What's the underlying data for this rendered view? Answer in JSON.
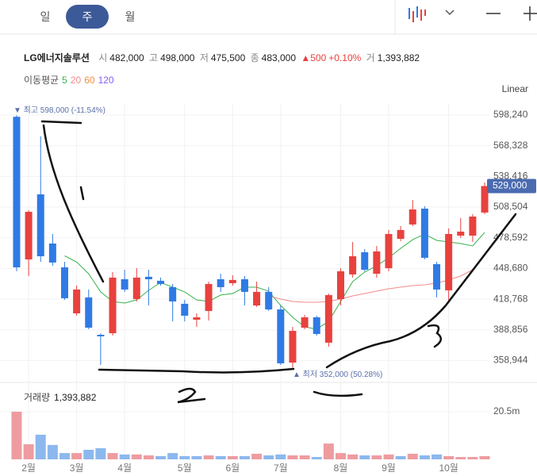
{
  "toolbar": {
    "tabs": [
      "일",
      "주",
      "월"
    ]
  },
  "info": {
    "name": "LG에너지솔루션",
    "items": [
      {
        "label": "시",
        "value": "482,000"
      },
      {
        "label": "고",
        "value": "498,000"
      },
      {
        "label": "저",
        "value": "475,500"
      },
      {
        "label": "종",
        "value": "483,000"
      }
    ],
    "change": "▲500",
    "change_pct": "+0.10%",
    "volume_label": "거",
    "volume": "1,393,882"
  },
  "scale_mode": "Linear",
  "chart_data": [
    {
      "type": "candlestick",
      "legend_title": "이동평균",
      "categories": [
        null,
        "2월",
        null,
        null,
        null,
        "3월",
        null,
        null,
        null,
        "4월",
        null,
        null,
        null,
        null,
        "5월",
        null,
        null,
        null,
        "6월",
        null,
        null,
        null,
        "7월",
        null,
        null,
        null,
        null,
        "8월",
        null,
        null,
        null,
        "9월",
        null,
        null,
        null,
        null,
        "10월",
        null,
        null,
        null
      ],
      "open": [
        596500,
        457500,
        520900,
        473000,
        449800,
        405000,
        420500,
        384100,
        385600,
        438200,
        418900,
        440600,
        436700,
        430500,
        414300,
        398800,
        407300,
        438200,
        434400,
        438200,
        412700,
        425900,
        408800,
        357000,
        391000,
        401100,
        376400,
        418900,
        442900,
        464500,
        443600,
        449000,
        477600,
        491600,
        507000,
        452900,
        427400,
        480700,
        480700,
        503200
      ],
      "high": [
        598000,
        505500,
        577400,
        482300,
        455200,
        432000,
        428200,
        385600,
        445200,
        447500,
        449000,
        447500,
        439800,
        433600,
        418100,
        405000,
        435900,
        443600,
        442100,
        441300,
        435900,
        430500,
        412700,
        391800,
        403400,
        402700,
        424300,
        449000,
        474500,
        467600,
        470700,
        486200,
        490000,
        515500,
        509300,
        455200,
        487700,
        497700,
        501600,
        532500
      ],
      "low": [
        446000,
        441300,
        455200,
        451400,
        418100,
        402700,
        389500,
        354700,
        383300,
        425900,
        416600,
        412700,
        432000,
        397200,
        397200,
        391800,
        398000,
        425900,
        432000,
        412700,
        411200,
        407300,
        354700,
        352000,
        389500,
        383300,
        372500,
        412700,
        439800,
        446000,
        439800,
        446000,
        475300,
        490000,
        457500,
        420500,
        415000,
        478400,
        474500,
        501600
      ],
      "close": [
        449800,
        503900,
        460600,
        454500,
        419700,
        428200,
        391000,
        382600,
        439800,
        428200,
        439800,
        438200,
        433600,
        416600,
        402700,
        401100,
        433600,
        430500,
        437500,
        425900,
        425900,
        408800,
        356300,
        387900,
        401100,
        384900,
        422800,
        446000,
        460600,
        447500,
        465300,
        482300,
        486200,
        506200,
        459100,
        428200,
        482300,
        484600,
        499300,
        529000
      ],
      "up_color": "#e8413e",
      "down_color": "#2f7ae5",
      "series": [
        {
          "name": "5",
          "color": "#37b24d",
          "values": [
            null,
            null,
            null,
            null,
            461000,
            455000,
            443600,
            425900,
            416600,
            415000,
            418100,
            427400,
            435100,
            430500,
            425900,
            418100,
            416600,
            422800,
            424300,
            430500,
            430500,
            426600,
            412700,
            401100,
            391800,
            389500,
            397200,
            416600,
            435900,
            445200,
            451400,
            459100,
            468300,
            476800,
            482300,
            476100,
            474500,
            473000,
            470700,
            483800
          ]
        },
        {
          "name": "20",
          "color": "#f28a8a",
          "values": [
            null,
            null,
            null,
            null,
            null,
            null,
            null,
            null,
            null,
            null,
            null,
            null,
            null,
            null,
            null,
            null,
            null,
            null,
            null,
            null,
            null,
            422000,
            418900,
            416600,
            415800,
            415800,
            416600,
            418900,
            422000,
            424300,
            426600,
            428900,
            430500,
            432000,
            432800,
            434400,
            437500,
            441300,
            447500,
            null
          ]
        },
        {
          "name": "60",
          "color": "#f08c3c",
          "values": [
            null,
            null,
            null,
            null,
            null,
            null,
            null,
            null,
            null,
            null,
            null,
            null,
            null,
            null,
            null,
            null,
            null,
            null,
            null,
            null,
            null,
            null,
            null,
            null,
            null,
            null,
            null,
            null,
            null,
            null,
            null,
            null,
            null,
            null,
            null,
            null,
            null,
            null,
            null,
            null
          ]
        },
        {
          "name": "120",
          "color": "#845ef7",
          "values": [
            null,
            null,
            null,
            null,
            null,
            null,
            null,
            null,
            null,
            null,
            null,
            null,
            null,
            null,
            null,
            null,
            null,
            null,
            null,
            null,
            null,
            null,
            null,
            null,
            null,
            null,
            null,
            null,
            null,
            null,
            null,
            null,
            null,
            null,
            null,
            null,
            null,
            null,
            null,
            null
          ]
        }
      ],
      "ylim": [
        347000,
        609800
      ],
      "yticks": [
        {
          "value": 598240,
          "label": "598,240"
        },
        {
          "value": 568328,
          "label": "568,328"
        },
        {
          "value": 538416,
          "label": "538,416"
        },
        {
          "value": 508504,
          "label": "508,504"
        },
        {
          "value": 478592,
          "label": "478,592"
        },
        {
          "value": 448680,
          "label": "448,680"
        },
        {
          "value": 418768,
          "label": "418,768"
        },
        {
          "value": 388856,
          "label": "388,856"
        },
        {
          "value": 358944,
          "label": "358,944"
        }
      ],
      "grid": true,
      "last_label": "529,000",
      "annotations": [
        {
          "text": "▼ 최고 598,000 (-11.54%)",
          "index": 0
        },
        {
          "text": "▲ 최저 352,000 (50.28%)",
          "index": 23
        }
      ]
    },
    {
      "type": "bar",
      "title": "거래량",
      "latest_label": "1,393,882",
      "values": [
        20500000,
        6500000,
        10600000,
        6200000,
        2700000,
        2700000,
        4100000,
        4800000,
        2700000,
        2100000,
        2100000,
        1700000,
        1400000,
        2700000,
        1400000,
        1400000,
        1700000,
        1400000,
        1400000,
        1400000,
        2400000,
        1700000,
        2100000,
        1700000,
        1700000,
        1000000,
        6800000,
        2700000,
        2100000,
        1700000,
        1700000,
        2100000,
        1400000,
        2400000,
        1700000,
        2100000,
        1400000,
        1000000,
        1000000,
        1400000
      ],
      "colors": [
        "#ee9ca0",
        "#ee9ca0",
        "#8cb8ee",
        "#8cb8ee",
        "#8cb8ee",
        "#ee9ca0",
        "#8cb8ee",
        "#8cb8ee",
        "#ee9ca0",
        "#8cb8ee",
        "#ee9ca0",
        "#ee9ca0",
        "#8cb8ee",
        "#8cb8ee",
        "#8cb8ee",
        "#8cb8ee",
        "#ee9ca0",
        "#8cb8ee",
        "#ee9ca0",
        "#8cb8ee",
        "#ee9ca0",
        "#8cb8ee",
        "#8cb8ee",
        "#ee9ca0",
        "#ee9ca0",
        "#8cb8ee",
        "#ee9ca0",
        "#ee9ca0",
        "#ee9ca0",
        "#8cb8ee",
        "#ee9ca0",
        "#ee9ca0",
        "#8cb8ee",
        "#ee9ca0",
        "#8cb8ee",
        "#8cb8ee",
        "#ee9ca0",
        "#ee9ca0",
        "#ee9ca0",
        "#ee9ca0"
      ],
      "ylim": [
        0,
        30400000
      ],
      "yticks": [
        {
          "value": 20500000,
          "label": "20.5m"
        }
      ]
    }
  ]
}
